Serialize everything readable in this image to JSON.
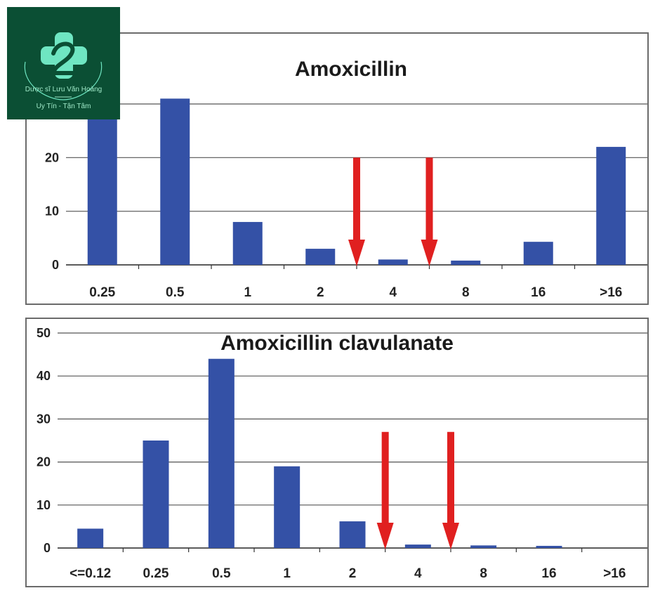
{
  "logo": {
    "name": "Dược sĩ Lưu Văn Hoàng",
    "slogan": "Uy Tín - Tận Tâm",
    "colors": {
      "background": "#0b4f34",
      "mark": "#6fe6c2"
    }
  },
  "colors": {
    "bar": "#3451a6",
    "arrow": "#e02020",
    "grid": "#555555"
  },
  "chart_data": [
    {
      "type": "bar",
      "title": "Amoxicillin",
      "categories": [
        "0.25",
        "0.5",
        "1",
        "2",
        "4",
        "8",
        "16",
        ">16"
      ],
      "values": [
        29,
        31,
        8,
        3,
        1,
        0.8,
        4.3,
        22
      ],
      "ylim": [
        0,
        30
      ],
      "yticks": [
        0,
        10,
        20
      ],
      "grid": true,
      "legend": "none",
      "annotations": [
        {
          "type": "downward-arrow",
          "x_between": [
            "2",
            "4"
          ],
          "from_y": 20,
          "to_y": 0
        },
        {
          "type": "downward-arrow",
          "x_between": [
            "4",
            "8"
          ],
          "from_y": 20,
          "to_y": 0
        }
      ]
    },
    {
      "type": "bar",
      "title": "Amoxicillin clavulanate",
      "categories": [
        "<=0.12",
        "0.25",
        "0.5",
        "1",
        "2",
        "4",
        "8",
        "16",
        ">16"
      ],
      "values": [
        4.5,
        25,
        44,
        19,
        6.2,
        0.8,
        0.6,
        0.5,
        0
      ],
      "ylim": [
        0,
        50
      ],
      "yticks": [
        0,
        10,
        20,
        30,
        40,
        50
      ],
      "grid": true,
      "legend": "none",
      "annotations": [
        {
          "type": "downward-arrow",
          "x_between": [
            "2",
            "4"
          ],
          "from_y": 27,
          "to_y": 0
        },
        {
          "type": "downward-arrow",
          "x_between": [
            "4",
            "8"
          ],
          "from_y": 27,
          "to_y": 0
        }
      ]
    }
  ]
}
